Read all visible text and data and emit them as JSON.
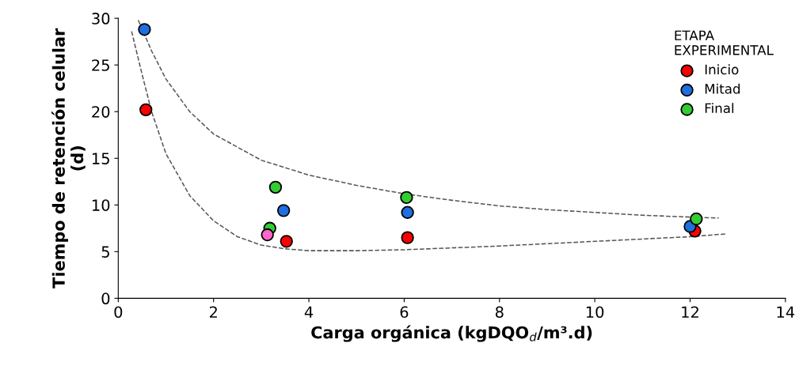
{
  "chart_data": {
    "type": "scatter",
    "xlabel": "Carga orgánica (kgDQO$_{d}$/m³.d)",
    "ylabel": "Tiempo de retención celular\n(d)",
    "xlim": [
      0,
      14
    ],
    "xticks": [
      0,
      2,
      4,
      6,
      8,
      10,
      12,
      14
    ],
    "ylim": [
      0,
      30
    ],
    "yticks": [
      0,
      5,
      10,
      15,
      20,
      25,
      30
    ],
    "grid": false,
    "legend": "top right",
    "legend_title": "ETAPA\nEXPERIMENTAL",
    "marker": "circle",
    "series": [
      {
        "name": "Inicio",
        "color": "#ff0000",
        "x": [
          0.58,
          3.53,
          6.07,
          12.1
        ],
        "values": [
          20.2,
          6.1,
          6.5,
          7.2
        ]
      },
      {
        "name": "Mitad",
        "color": "#1f6fe0",
        "x": [
          0.55,
          3.47,
          6.07,
          12.0
        ],
        "values": [
          28.8,
          9.4,
          9.2,
          7.7
        ]
      },
      {
        "name": "Final",
        "color": "#33cc33",
        "x": [
          3.3,
          3.18,
          6.05,
          12.13
        ],
        "values": [
          11.9,
          7.5,
          10.8,
          8.5
        ]
      },
      {
        "color": "#ff66cc",
        "x": [
          3.13
        ],
        "values": [
          6.8
        ]
      },
      {
        "type": "line",
        "color": "#555555",
        "line_style": "dashed",
        "marker": "none",
        "x": [
          0.42,
          0.7,
          1,
          1.5,
          2,
          3,
          4,
          5,
          6,
          7,
          8,
          9,
          10,
          11,
          12,
          12.6
        ],
        "values": [
          29.8,
          26.5,
          23.5,
          20,
          17.6,
          14.8,
          13.2,
          12.1,
          11.2,
          10.5,
          9.9,
          9.5,
          9.2,
          8.9,
          8.7,
          8.6
        ]
      },
      {
        "type": "line",
        "color": "#555555",
        "line_style": "dashed",
        "marker": "none",
        "x": [
          0.28,
          0.5,
          0.7,
          1,
          1.5,
          2,
          2.5,
          3,
          3.5,
          4,
          5,
          6,
          8,
          10,
          12,
          12.75
        ],
        "values": [
          28.6,
          24,
          20,
          15.5,
          11,
          8.3,
          6.6,
          5.7,
          5.3,
          5.1,
          5.1,
          5.2,
          5.6,
          6.1,
          6.6,
          6.9
        ]
      }
    ]
  }
}
